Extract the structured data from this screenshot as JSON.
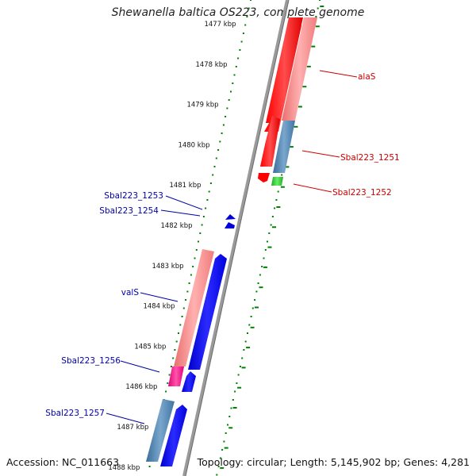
{
  "title": "Shewanella baltica OS223, complete genome",
  "footer": {
    "accession": "Accession: NC_011663",
    "summary": "Topology: circular; Length: 5,145,902 bp; Genes: 4,281"
  },
  "colors": {
    "forward_gene": "#ff0000",
    "reverse_gene": "#0000ee",
    "forward_cds": "#f08080",
    "reverse_cds": "#4682b4",
    "rna": "#33cc33",
    "pink_cds": "#ff1493",
    "tick": "#008000",
    "backbone": "#808080",
    "forward_label": "#cc0000",
    "reverse_label": "#0000aa"
  },
  "scale": {
    "ticks": [
      "1477 kbp",
      "1478 kbp",
      "1479 kbp",
      "1480 kbp",
      "1481 kbp",
      "1482 kbp",
      "1483 kbp",
      "1484 kbp",
      "1485 kbp",
      "1486 kbp",
      "1487 kbp",
      "1488 kbp"
    ]
  },
  "labels": {
    "alaS": "alaS",
    "sbal1251": "Sbal223_1251",
    "sbal1252": "Sbal223_1252",
    "sbal1253": "Sbal223_1253",
    "sbal1254": "Sbal223_1254",
    "valS": "valS",
    "sbal1256": "Sbal223_1256",
    "sbal1257": "Sbal223_1257"
  }
}
